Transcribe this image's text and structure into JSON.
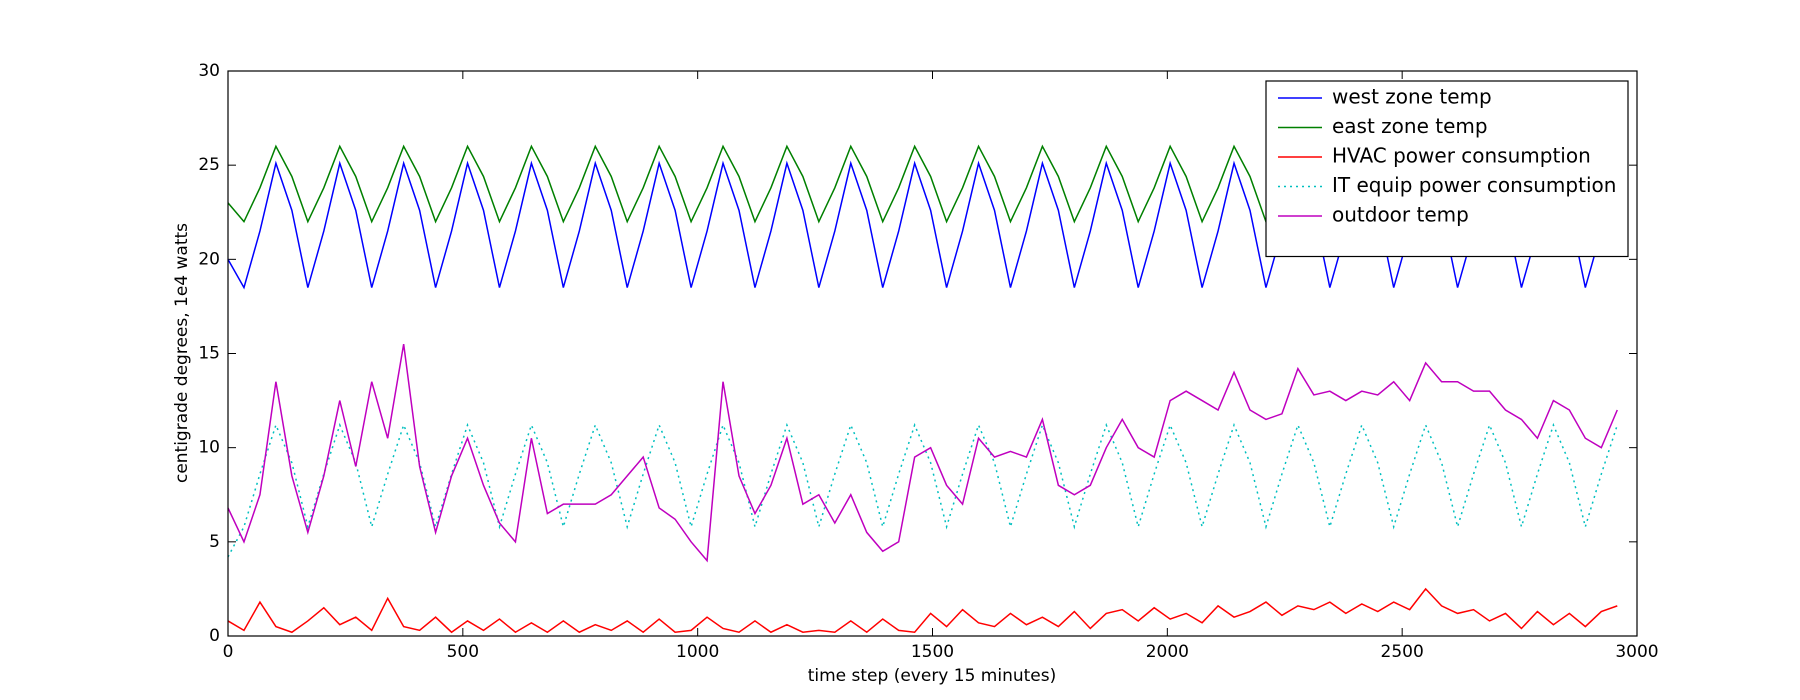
{
  "chart_data": {
    "type": "line",
    "xlabel": "time step (every 15 minutes)",
    "ylabel": "centigrade degrees, 1e4 watts",
    "xlim": [
      0,
      3000
    ],
    "ylim": [
      0,
      30
    ],
    "xticks": [
      0,
      500,
      1000,
      1500,
      2000,
      2500,
      3000
    ],
    "yticks": [
      0,
      5,
      10,
      15,
      20,
      25,
      30
    ],
    "legend": "upper right",
    "x": [
      0,
      34,
      68,
      102,
      136,
      170,
      204,
      238,
      272,
      306,
      340,
      374,
      408,
      442,
      476,
      510,
      544,
      578,
      612,
      646,
      680,
      714,
      748,
      782,
      816,
      850,
      884,
      918,
      952,
      986,
      1020,
      1054,
      1088,
      1122,
      1156,
      1190,
      1224,
      1258,
      1292,
      1326,
      1360,
      1394,
      1428,
      1462,
      1496,
      1530,
      1564,
      1598,
      1632,
      1666,
      1700,
      1734,
      1768,
      1802,
      1836,
      1870,
      1904,
      1938,
      1972,
      2006,
      2040,
      2074,
      2108,
      2142,
      2176,
      2210,
      2244,
      2278,
      2312,
      2346,
      2380,
      2414,
      2448,
      2482,
      2516,
      2550,
      2584,
      2618,
      2652,
      2686,
      2720,
      2754,
      2788,
      2822,
      2856,
      2890,
      2924,
      2958
    ],
    "series": [
      {
        "name": "west zone temp",
        "color": "#0000ff",
        "linestyle": "solid",
        "values": [
          20,
          18.5,
          21.5,
          25.1,
          22.6,
          18.5,
          21.5,
          25.1,
          22.6,
          18.5,
          21.5,
          25.1,
          22.6,
          18.5,
          21.5,
          25.1,
          22.6,
          18.5,
          21.5,
          25.1,
          22.6,
          18.5,
          21.5,
          25.1,
          22.6,
          18.5,
          21.5,
          25.1,
          22.6,
          18.5,
          21.5,
          25.1,
          22.6,
          18.5,
          21.5,
          25.1,
          22.6,
          18.5,
          21.5,
          25.1,
          22.6,
          18.5,
          21.5,
          25.1,
          22.6,
          18.5,
          21.5,
          25.1,
          22.6,
          18.5,
          21.5,
          25.1,
          22.6,
          18.5,
          21.5,
          25.1,
          22.6,
          18.5,
          21.5,
          25.1,
          22.6,
          18.5,
          21.5,
          25.1,
          22.6,
          18.5,
          21.5,
          25.1,
          22.6,
          18.5,
          21.5,
          25.1,
          22.6,
          18.5,
          21.5,
          25.1,
          22.6,
          18.5,
          21.5,
          25.1,
          22.6,
          18.5,
          21.5,
          25.1,
          22.6,
          18.5,
          21.5,
          25.1
        ]
      },
      {
        "name": "east zone temp",
        "color": "#008000",
        "linestyle": "solid",
        "values": [
          23,
          22,
          23.8,
          26,
          24.4,
          22,
          23.8,
          26,
          24.4,
          22,
          23.8,
          26,
          24.4,
          22,
          23.8,
          26,
          24.4,
          22,
          23.8,
          26,
          24.4,
          22,
          23.8,
          26,
          24.4,
          22,
          23.8,
          26,
          24.4,
          22,
          23.8,
          26,
          24.4,
          22,
          23.8,
          26,
          24.4,
          22,
          23.8,
          26,
          24.4,
          22,
          23.8,
          26,
          24.4,
          22,
          23.8,
          26,
          24.4,
          22,
          23.8,
          26,
          24.4,
          22,
          23.8,
          26,
          24.4,
          22,
          23.8,
          26,
          24.4,
          22,
          23.8,
          26,
          24.4,
          22,
          23.8,
          26,
          24.4,
          22,
          23.8,
          26,
          24.4,
          22,
          23.8,
          26,
          24.4,
          22,
          23.8,
          26,
          24.4,
          22,
          23.8,
          26,
          24.4,
          22,
          23.8,
          26
        ]
      },
      {
        "name": "HVAC power consumption",
        "color": "#ff0000",
        "linestyle": "solid",
        "values": [
          0.8,
          0.3,
          1.8,
          0.5,
          0.2,
          0.8,
          1.5,
          0.6,
          1.0,
          0.3,
          2.0,
          0.5,
          0.3,
          1.0,
          0.2,
          0.8,
          0.3,
          0.9,
          0.2,
          0.7,
          0.2,
          0.8,
          0.2,
          0.6,
          0.3,
          0.8,
          0.2,
          0.9,
          0.2,
          0.3,
          1.0,
          0.4,
          0.2,
          0.8,
          0.2,
          0.6,
          0.2,
          0.3,
          0.2,
          0.8,
          0.2,
          0.9,
          0.3,
          0.2,
          1.2,
          0.5,
          1.4,
          0.7,
          0.5,
          1.2,
          0.6,
          1.0,
          0.5,
          1.3,
          0.4,
          1.2,
          1.4,
          0.8,
          1.5,
          0.9,
          1.2,
          0.7,
          1.6,
          1.0,
          1.3,
          1.8,
          1.1,
          1.6,
          1.4,
          1.8,
          1.2,
          1.7,
          1.3,
          1.8,
          1.4,
          2.5,
          1.6,
          1.2,
          1.4,
          0.8,
          1.2,
          0.4,
          1.3,
          0.6,
          1.2,
          0.5,
          1.3,
          1.6
        ]
      },
      {
        "name": "IT equip power consumption",
        "color": "#00bfbf",
        "linestyle": "dotted",
        "values": [
          4.2,
          5.8,
          8.6,
          11.2,
          9.2,
          5.8,
          8.6,
          11.2,
          9.2,
          5.8,
          8.6,
          11.2,
          9.2,
          5.8,
          8.6,
          11.2,
          9.2,
          5.8,
          8.6,
          11.2,
          9.2,
          5.8,
          8.6,
          11.2,
          9.2,
          5.8,
          8.6,
          11.2,
          9.2,
          5.8,
          8.6,
          11.2,
          9.2,
          5.8,
          8.6,
          11.2,
          9.2,
          5.8,
          8.6,
          11.2,
          9.2,
          5.8,
          8.6,
          11.2,
          9.2,
          5.8,
          8.6,
          11.2,
          9.2,
          5.8,
          8.6,
          11.2,
          9.2,
          5.8,
          8.6,
          11.2,
          9.2,
          5.8,
          8.6,
          11.2,
          9.2,
          5.8,
          8.6,
          11.2,
          9.2,
          5.8,
          8.6,
          11.2,
          9.2,
          5.8,
          8.6,
          11.2,
          9.2,
          5.8,
          8.6,
          11.2,
          9.2,
          5.8,
          8.6,
          11.2,
          9.2,
          5.8,
          8.6,
          11.2,
          9.2,
          5.8,
          8.6,
          11.2
        ]
      },
      {
        "name": "outdoor temp",
        "color": "#bf00bf",
        "linestyle": "solid",
        "values": [
          6.8,
          5.0,
          7.5,
          13.5,
          8.5,
          5.5,
          8.5,
          12.5,
          9.0,
          13.5,
          10.5,
          15.5,
          9.0,
          5.5,
          8.5,
          10.5,
          8.0,
          6.0,
          5.0,
          10.5,
          6.5,
          7.0,
          7.0,
          7.0,
          7.5,
          8.5,
          9.5,
          6.8,
          6.2,
          5.0,
          4.0,
          13.5,
          8.5,
          6.5,
          8.0,
          10.5,
          7.0,
          7.5,
          6.0,
          7.5,
          5.5,
          4.5,
          5.0,
          9.5,
          10.0,
          8.0,
          7.0,
          10.5,
          9.5,
          9.8,
          9.5,
          11.5,
          8.0,
          7.5,
          8.0,
          10.0,
          11.5,
          10.0,
          9.5,
          12.5,
          13.0,
          12.5,
          12.0,
          14.0,
          12.0,
          11.5,
          11.8,
          14.2,
          12.8,
          13.0,
          12.5,
          13.0,
          12.8,
          13.5,
          12.5,
          14.5,
          13.5,
          13.5,
          13.0,
          13.0,
          12.0,
          11.5,
          10.5,
          12.5,
          12.0,
          10.5,
          10.0,
          12.0
        ]
      }
    ]
  }
}
